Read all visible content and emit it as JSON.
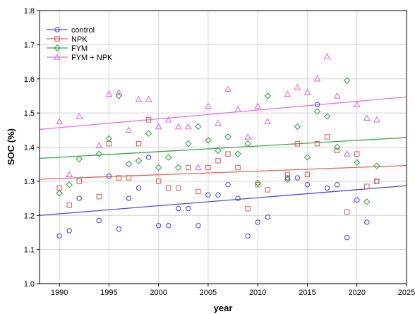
{
  "chart_data": {
    "type": "scatter",
    "title": "",
    "xlabel": "year",
    "ylabel": "SOC (%)",
    "xlim": [
      1988,
      2025
    ],
    "ylim": [
      1.0,
      1.8
    ],
    "xticks": [
      1990,
      1995,
      2000,
      2005,
      2010,
      2015,
      2020,
      2025
    ],
    "yticks": [
      1.0,
      1.1,
      1.2,
      1.3,
      1.4,
      1.5,
      1.6,
      1.7,
      1.8
    ],
    "grid": true,
    "legend_position": "top-left",
    "series": [
      {
        "name": "control",
        "marker": "circle",
        "color": "#4d4dd9",
        "trend": [
          [
            1988,
            1.2
          ],
          [
            2025,
            1.287
          ]
        ],
        "points": [
          [
            1990,
            1.14
          ],
          [
            1991,
            1.155
          ],
          [
            1992,
            1.25
          ],
          [
            1994,
            1.185
          ],
          [
            1995,
            1.315
          ],
          [
            1996,
            1.16
          ],
          [
            1997,
            1.25
          ],
          [
            1998,
            1.28
          ],
          [
            1999,
            1.37
          ],
          [
            2000,
            1.17
          ],
          [
            2001,
            1.17
          ],
          [
            2002,
            1.22
          ],
          [
            2003,
            1.22
          ],
          [
            2004,
            1.17
          ],
          [
            2005,
            1.26
          ],
          [
            2006,
            1.26
          ],
          [
            2007,
            1.29
          ],
          [
            2008,
            1.25
          ],
          [
            2009,
            1.14
          ],
          [
            2010,
            1.18
          ],
          [
            2011,
            1.195
          ],
          [
            2013,
            1.31
          ],
          [
            2014,
            1.31
          ],
          [
            2015,
            1.29
          ],
          [
            2016,
            1.525
          ],
          [
            2017,
            1.28
          ],
          [
            2018,
            1.29
          ],
          [
            2019,
            1.135
          ],
          [
            2020,
            1.245
          ],
          [
            2021,
            1.18
          ],
          [
            2022,
            1.3
          ]
        ]
      },
      {
        "name": "NPK",
        "marker": "square",
        "color": "#e0665a",
        "trend": [
          [
            1988,
            1.306
          ],
          [
            2025,
            1.346
          ]
        ],
        "points": [
          [
            1990,
            1.28
          ],
          [
            1991,
            1.23
          ],
          [
            1992,
            1.3
          ],
          [
            1994,
            1.255
          ],
          [
            1995,
            1.41
          ],
          [
            1996,
            1.31
          ],
          [
            1997,
            1.31
          ],
          [
            1998,
            1.41
          ],
          [
            1999,
            1.48
          ],
          [
            2000,
            1.3
          ],
          [
            2001,
            1.28
          ],
          [
            2002,
            1.28
          ],
          [
            2003,
            1.34
          ],
          [
            2004,
            1.27
          ],
          [
            2005,
            1.34
          ],
          [
            2006,
            1.36
          ],
          [
            2007,
            1.38
          ],
          [
            2008,
            1.34
          ],
          [
            2009,
            1.22
          ],
          [
            2010,
            1.29
          ],
          [
            2011,
            1.275
          ],
          [
            2013,
            1.32
          ],
          [
            2014,
            1.41
          ],
          [
            2015,
            1.32
          ],
          [
            2016,
            1.41
          ],
          [
            2017,
            1.43
          ],
          [
            2018,
            1.39
          ],
          [
            2019,
            1.21
          ],
          [
            2020,
            1.38
          ],
          [
            2021,
            1.285
          ],
          [
            2022,
            1.3
          ]
        ]
      },
      {
        "name": "FYM",
        "marker": "diamond",
        "color": "#3aa64a",
        "trend": [
          [
            1988,
            1.367
          ],
          [
            2025,
            1.428
          ]
        ],
        "points": [
          [
            1990,
            1.265
          ],
          [
            1991,
            1.29
          ],
          [
            1992,
            1.365
          ],
          [
            1994,
            1.38
          ],
          [
            1995,
            1.425
          ],
          [
            1996,
            1.55
          ],
          [
            1997,
            1.35
          ],
          [
            1998,
            1.36
          ],
          [
            1999,
            1.44
          ],
          [
            2000,
            1.34
          ],
          [
            2001,
            1.37
          ],
          [
            2002,
            1.34
          ],
          [
            2003,
            1.41
          ],
          [
            2004,
            1.46
          ],
          [
            2005,
            1.42
          ],
          [
            2006,
            1.39
          ],
          [
            2007,
            1.43
          ],
          [
            2008,
            1.38
          ],
          [
            2009,
            1.41
          ],
          [
            2010,
            1.295
          ],
          [
            2011,
            1.55
          ],
          [
            2013,
            1.305
          ],
          [
            2014,
            1.46
          ],
          [
            2015,
            1.37
          ],
          [
            2016,
            1.505
          ],
          [
            2017,
            1.49
          ],
          [
            2018,
            1.4
          ],
          [
            2019,
            1.595
          ],
          [
            2020,
            1.355
          ],
          [
            2021,
            1.24
          ],
          [
            2022,
            1.345
          ]
        ]
      },
      {
        "name": "FYM + NPK",
        "marker": "triangle",
        "color": "#e66de6",
        "trend": [
          [
            1988,
            1.452
          ],
          [
            2025,
            1.547
          ]
        ],
        "points": [
          [
            1990,
            1.475
          ],
          [
            1991,
            1.32
          ],
          [
            1992,
            1.49
          ],
          [
            1994,
            1.405
          ],
          [
            1995,
            1.555
          ],
          [
            1996,
            1.56
          ],
          [
            1997,
            1.45
          ],
          [
            1998,
            1.54
          ],
          [
            1999,
            1.54
          ],
          [
            2000,
            1.46
          ],
          [
            2001,
            1.48
          ],
          [
            2002,
            1.46
          ],
          [
            2003,
            1.46
          ],
          [
            2004,
            1.34
          ],
          [
            2005,
            1.52
          ],
          [
            2006,
            1.47
          ],
          [
            2007,
            1.57
          ],
          [
            2008,
            1.51
          ],
          [
            2009,
            1.43
          ],
          [
            2010,
            1.52
          ],
          [
            2011,
            1.475
          ],
          [
            2013,
            1.555
          ],
          [
            2014,
            1.575
          ],
          [
            2015,
            1.56
          ],
          [
            2016,
            1.6
          ],
          [
            2017,
            1.665
          ],
          [
            2018,
            1.55
          ],
          [
            2019,
            1.38
          ],
          [
            2020,
            1.525
          ],
          [
            2021,
            1.485
          ],
          [
            2022,
            1.48
          ]
        ]
      }
    ]
  }
}
